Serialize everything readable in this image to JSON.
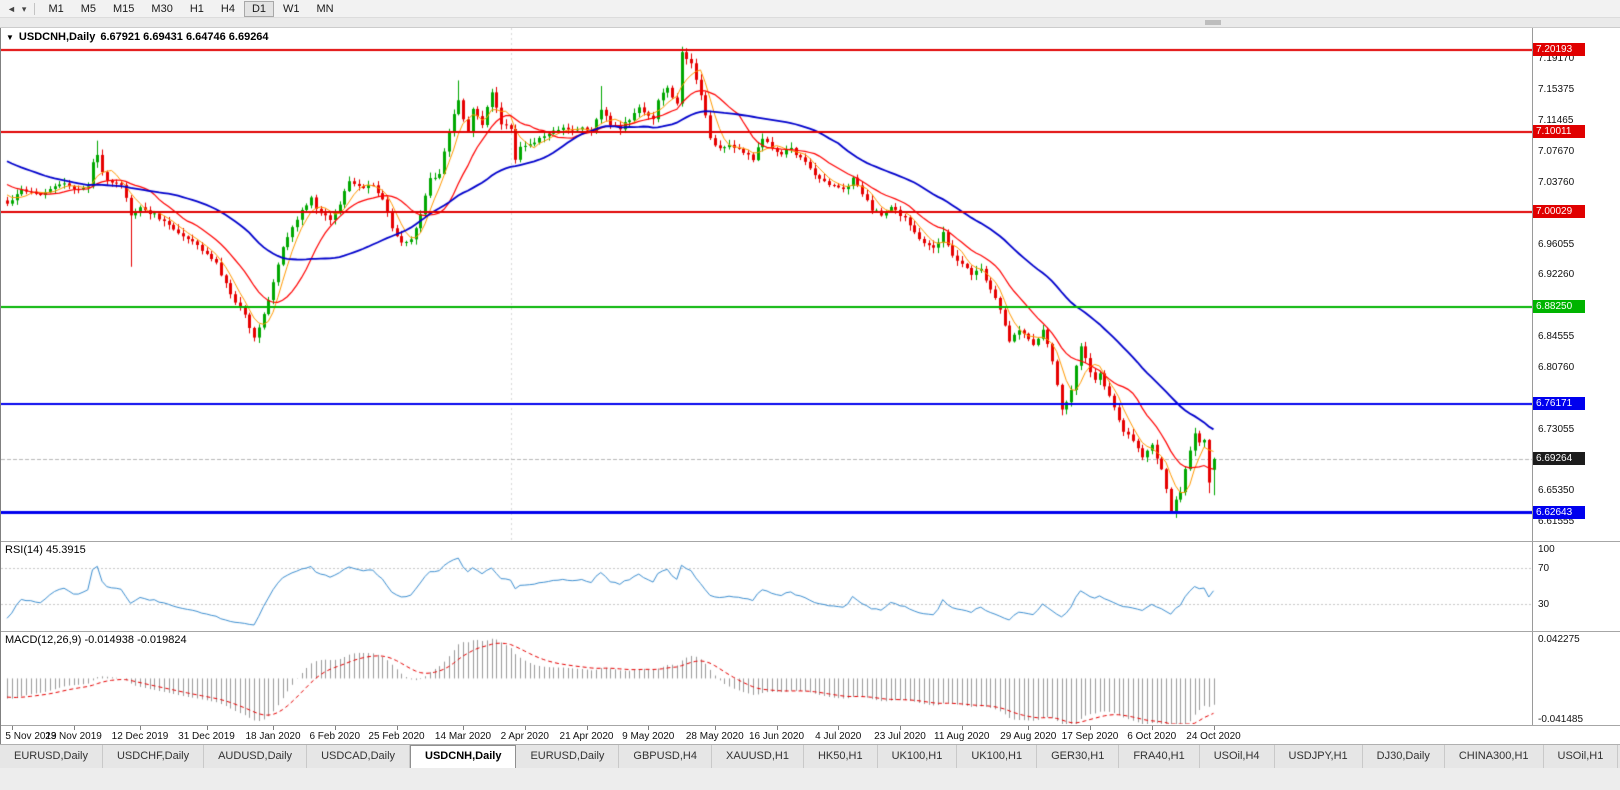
{
  "toolbar": {
    "nav_icon": "◄",
    "nav_caret": "▾",
    "timeframes": [
      "M1",
      "M5",
      "M15",
      "M30",
      "H1",
      "H4",
      "D1",
      "W1",
      "MN"
    ],
    "active_timeframe": "D1"
  },
  "info_bar": {
    "dropdown_icon": "▼",
    "title": "USDCNH,Daily",
    "ohlc": "6.67921 6.69431 6.64746 6.69264"
  },
  "price_axis_labels": [
    "7.19170",
    "7.15375",
    "7.11465",
    "7.07670",
    "7.03760",
    "6.96055",
    "6.92260",
    "6.84555",
    "6.80760",
    "6.73055",
    "6.65350",
    "6.61555"
  ],
  "rsi_panel": {
    "label": "RSI(14) 45.3915",
    "axis": [
      {
        "value": 100,
        "label": "100"
      },
      {
        "value": 70,
        "label": "70"
      },
      {
        "value": 30,
        "label": "30"
      }
    ]
  },
  "macd_panel": {
    "label": "MACD(12,26,9) -0.014938 -0.019824",
    "axis": [
      {
        "value": 0.042275,
        "label": "0.042275"
      },
      {
        "value": -0.041485,
        "label": "-0.041485"
      }
    ]
  },
  "date_axis": [
    {
      "label": "5 Nov 2019",
      "bar": 1
    },
    {
      "label": "23 Nov 2019",
      "bar": 14
    },
    {
      "label": "12 Dec 2019",
      "bar": 28
    },
    {
      "label": "31 Dec 2019",
      "bar": 42
    },
    {
      "label": "18 Jan 2020",
      "bar": 56
    },
    {
      "label": "6 Feb 2020",
      "bar": 69
    },
    {
      "label": "25 Feb 2020",
      "bar": 82
    },
    {
      "label": "14 Mar 2020",
      "bar": 96
    },
    {
      "label": "2 Apr 2020",
      "bar": 109
    },
    {
      "label": "21 Apr 2020",
      "bar": 122
    },
    {
      "label": "9 May 2020",
      "bar": 135
    },
    {
      "label": "28 May 2020",
      "bar": 149
    },
    {
      "label": "16 Jun 2020",
      "bar": 162
    },
    {
      "label": "4 Jul 2020",
      "bar": 175
    },
    {
      "label": "23 Jul 2020",
      "bar": 188
    },
    {
      "label": "11 Aug 2020",
      "bar": 201
    },
    {
      "label": "29 Aug 2020",
      "bar": 215
    },
    {
      "label": "17 Sep 2020",
      "bar": 228
    },
    {
      "label": "6 Oct 2020",
      "bar": 241
    },
    {
      "label": "24 Oct 2020",
      "bar": 254
    }
  ],
  "tabs": [
    "EURUSD,Daily",
    "USDCHF,Daily",
    "AUDUSD,Daily",
    "USDCAD,Daily",
    "USDCNH,Daily",
    "EURUSD,Daily",
    "GBPUSD,H4",
    "XAUUSD,H1",
    "HK50,H1",
    "UK100,H1",
    "UK100,H1",
    "GER30,H1",
    "FRA40,H1",
    "USOil,H4",
    "USDJPY,H1",
    "DJ30,Daily",
    "CHINA300,H1",
    "USOil,H1"
  ],
  "active_tab_index": 4,
  "chart_data": {
    "type": "candlestick",
    "symbol": "USDCNH",
    "timeframe": "Daily",
    "bars": 255,
    "price_range": [
      6.5905,
      7.2293
    ],
    "separator_bar": 106,
    "last_bar": {
      "open": 6.67921,
      "high": 6.69431,
      "low": 6.64746,
      "close": 6.69264
    },
    "pre_history": {
      "bars": 40,
      "from": 7.13,
      "to": 7.02
    },
    "close_anchors": [
      [
        0,
        7.01
      ],
      [
        3,
        7.029
      ],
      [
        7,
        7.023
      ],
      [
        11,
        7.035
      ],
      [
        15,
        7.029
      ],
      [
        17,
        7.032
      ],
      [
        18,
        7.06
      ],
      [
        19,
        7.072
      ],
      [
        20,
        7.05
      ],
      [
        21,
        7.041
      ],
      [
        24,
        7.035
      ],
      [
        26,
        6.997
      ],
      [
        28,
        7.004
      ],
      [
        31,
        6.997
      ],
      [
        35,
        6.979
      ],
      [
        38,
        6.966
      ],
      [
        41,
        6.954
      ],
      [
        44,
        6.935
      ],
      [
        47,
        6.897
      ],
      [
        50,
        6.872
      ],
      [
        52,
        6.843
      ],
      [
        55,
        6.89
      ],
      [
        58,
        6.955
      ],
      [
        60,
        6.98
      ],
      [
        62,
        7.004
      ],
      [
        64,
        7.016
      ],
      [
        66,
        6.997
      ],
      [
        68,
        6.991
      ],
      [
        70,
        7.01
      ],
      [
        72,
        7.041
      ],
      [
        75,
        7.029
      ],
      [
        77,
        7.035
      ],
      [
        79,
        7.016
      ],
      [
        81,
        6.979
      ],
      [
        83,
        6.96
      ],
      [
        85,
        6.966
      ],
      [
        87,
        6.997
      ],
      [
        89,
        7.041
      ],
      [
        91,
        7.047
      ],
      [
        93,
        7.1
      ],
      [
        95,
        7.141
      ],
      [
        96,
        7.116
      ],
      [
        97,
        7.098
      ],
      [
        98,
        7.129
      ],
      [
        100,
        7.11
      ],
      [
        102,
        7.148
      ],
      [
        103,
        7.129
      ],
      [
        104,
        7.11
      ],
      [
        106,
        7.104
      ],
      [
        107,
        7.067
      ],
      [
        108,
        7.079
      ],
      [
        110,
        7.085
      ],
      [
        112,
        7.091
      ],
      [
        114,
        7.098
      ],
      [
        117,
        7.104
      ],
      [
        119,
        7.101
      ],
      [
        121,
        7.106
      ],
      [
        123,
        7.098
      ],
      [
        125,
        7.129
      ],
      [
        127,
        7.11
      ],
      [
        129,
        7.104
      ],
      [
        131,
        7.116
      ],
      [
        133,
        7.129
      ],
      [
        136,
        7.116
      ],
      [
        137,
        7.141
      ],
      [
        139,
        7.154
      ],
      [
        141,
        7.135
      ],
      [
        142,
        7.198
      ],
      [
        144,
        7.185
      ],
      [
        145,
        7.167
      ],
      [
        146,
        7.148
      ],
      [
        148,
        7.091
      ],
      [
        150,
        7.079
      ],
      [
        152,
        7.085
      ],
      [
        155,
        7.073
      ],
      [
        157,
        7.067
      ],
      [
        159,
        7.091
      ],
      [
        161,
        7.079
      ],
      [
        163,
        7.073
      ],
      [
        165,
        7.079
      ],
      [
        167,
        7.067
      ],
      [
        169,
        7.054
      ],
      [
        171,
        7.041
      ],
      [
        173,
        7.035
      ],
      [
        176,
        7.029
      ],
      [
        178,
        7.041
      ],
      [
        180,
        7.023
      ],
      [
        182,
        7.004
      ],
      [
        184,
        6.997
      ],
      [
        186,
        7.004
      ],
      [
        188,
        6.997
      ],
      [
        190,
        6.985
      ],
      [
        192,
        6.966
      ],
      [
        195,
        6.954
      ],
      [
        197,
        6.973
      ],
      [
        199,
        6.948
      ],
      [
        201,
        6.935
      ],
      [
        203,
        6.922
      ],
      [
        205,
        6.929
      ],
      [
        207,
        6.904
      ],
      [
        209,
        6.879
      ],
      [
        211,
        6.841
      ],
      [
        213,
        6.854
      ],
      [
        216,
        6.835
      ],
      [
        218,
        6.854
      ],
      [
        220,
        6.816
      ],
      [
        222,
        6.753
      ],
      [
        224,
        6.778
      ],
      [
        226,
        6.835
      ],
      [
        227,
        6.816
      ],
      [
        228,
        6.803
      ],
      [
        229,
        6.791
      ],
      [
        230,
        6.797
      ],
      [
        232,
        6.772
      ],
      [
        235,
        6.728
      ],
      [
        237,
        6.716
      ],
      [
        239,
        6.697
      ],
      [
        241,
        6.709
      ],
      [
        243,
        6.678
      ],
      [
        245,
        6.628
      ],
      [
        247,
        6.653
      ],
      [
        249,
        6.703
      ],
      [
        250,
        6.722
      ],
      [
        251,
        6.713
      ],
      [
        252,
        6.718
      ],
      [
        253,
        6.661
      ],
      [
        254,
        6.6926
      ]
    ],
    "wick_overrides": [
      {
        "i": 19,
        "high": 7.089
      },
      {
        "i": 26,
        "low": 6.932
      },
      {
        "i": 95,
        "high": 7.164
      },
      {
        "i": 125,
        "high": 7.157
      },
      {
        "i": 142,
        "high": 7.206
      },
      {
        "i": 222,
        "low": 6.747
      },
      {
        "i": 245,
        "low": 6.6255
      },
      {
        "i": 253,
        "low": 6.65
      }
    ],
    "levels": [
      {
        "label": "7.20193",
        "price": 7.20193,
        "color": "#e00000",
        "width": 2
      },
      {
        "label": "7.10011",
        "price": 7.10011,
        "color": "#e00000",
        "width": 2
      },
      {
        "label": "7.00029",
        "price": 7.00029,
        "color": "#e00000",
        "width": 2
      },
      {
        "label": "6.88250",
        "price": 6.8825,
        "color": "#00b400",
        "width": 2
      },
      {
        "label": "6.76171",
        "price": 6.76171,
        "color": "#0000ee",
        "width": 2
      },
      {
        "label": "6.69264",
        "price": 6.69264,
        "color": "#9e9e9e",
        "width": 1,
        "style": "current"
      },
      {
        "label": "6.62643",
        "price": 6.62643,
        "color": "#0000ee",
        "width": 3
      }
    ],
    "moving_averages": [
      {
        "period": 5,
        "color": "#ff9900",
        "width": 1
      },
      {
        "period": 13,
        "color": "#ff0000",
        "width": 1.2
      },
      {
        "period": 34,
        "color": "#0000cc",
        "width": 1.8
      }
    ],
    "rsi": {
      "period": 14,
      "levels": [
        70,
        30
      ],
      "scale": [
        0,
        100
      ]
    },
    "macd": {
      "fast": 12,
      "slow": 26,
      "signal": 9,
      "scale": [
        -0.041485,
        0.042275
      ]
    },
    "colors": {
      "up": "#00a800",
      "down": "#e60000",
      "rsi": "#3d8fd1",
      "macd_hist": "#9a9a9a",
      "macd_signal": "#e60000"
    }
  }
}
